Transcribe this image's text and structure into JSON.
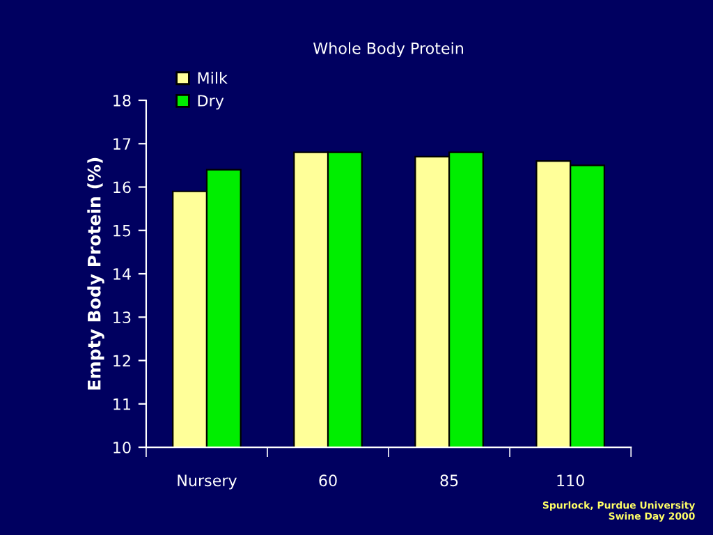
{
  "chart_data": {
    "type": "bar",
    "title": "Whole Body Protein",
    "ylabel": "Empty Body Protein (%)",
    "categories": [
      "Nursery",
      "60",
      "85",
      "110"
    ],
    "series": [
      {
        "name": "Milk",
        "color": "#ffff99",
        "values": [
          15.9,
          16.8,
          16.7,
          16.6
        ]
      },
      {
        "name": "Dry",
        "color": "#00ee00",
        "values": [
          16.4,
          16.8,
          16.8,
          16.5
        ]
      }
    ],
    "ylim": [
      10,
      18
    ],
    "yticks": [
      10,
      11,
      12,
      13,
      14,
      15,
      16,
      17,
      18
    ],
    "legend": "top left",
    "grid": false,
    "annotations": [
      "Spurlock, Purdue University\nSwine Day 2000"
    ]
  }
}
